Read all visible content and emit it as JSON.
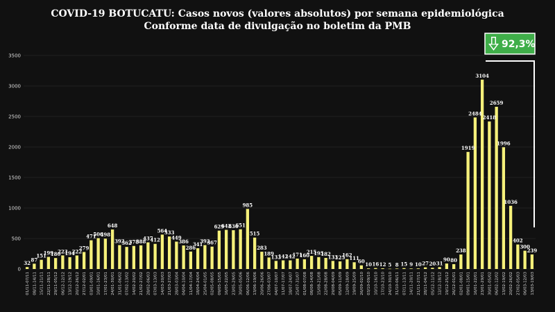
{
  "chart_data": {
    "type": "bar",
    "title": "COVID-19 BOTUCATU: Casos novos (valores absolutos) por semana epidemiológica",
    "subtitle": "Conforme data de divulgação no boletim da PMB",
    "ylim": [
      0,
      3500
    ],
    "yticks": [
      0,
      500,
      1000,
      1500,
      2000,
      2500,
      3000,
      3500
    ],
    "grid": true,
    "bar_color": "#f5f07a",
    "badge": {
      "text": "92,3%",
      "color": "#3fae49"
    },
    "categories": [
      "01/11-07/11",
      "08/11-14/11",
      "15/11-21/11",
      "22/11-28/11",
      "29/11-05/12",
      "06/12-12/12",
      "13/12-19/12",
      "20/12-26/12",
      "27/12-02/01",
      "03/01-09/01",
      "10/01-16/01",
      "17/01-23/01",
      "24/01-30/01",
      "31/01-06/02",
      "07/02-13/02",
      "14/02-20/02",
      "21/02-27/02",
      "28/02-06/03",
      "07/03-13/03",
      "14/03-20/03",
      "21/03-27/03",
      "28/03-03/04",
      "04/04-10/04",
      "11/04-17/04",
      "18/04-24/04",
      "25/04-01/05",
      "02/05-08/05",
      "09/05-15/05",
      "16/05-22/05",
      "23/05-29/05",
      "30/05-05/06",
      "06/06-12/06",
      "13/06-19/06",
      "20/06-26/06",
      "27/06-03/07",
      "04/07-10/07",
      "11/07-17/07",
      "18/07-24/07",
      "25/07-31/07",
      "01/08-07/08",
      "08/08-14/08",
      "15/08-21/08",
      "22/08-28/08",
      "29/08-04/09",
      "05/09-11/09",
      "12/09-18/09",
      "19/09-25/09",
      "26/09-02/10",
      "03/10-09/10",
      "10/10-16/10",
      "17/10-23/10",
      "24/10-30/10",
      "31/10-06/11",
      "07/11-13/11",
      "14/11-20/11",
      "21/11-27/11",
      "28/11-04/12",
      "05/12-11/12",
      "12/12-18/12",
      "19/12-25/12",
      "26/12-01/01",
      "02/01-08/01",
      "09/01-15/01",
      "16/01-22/01",
      "23/01-29/01",
      "30/01-05/02",
      "06/02-12/02",
      "13/02-19/02",
      "20/02-26/02",
      "27/02-05/03",
      "06/03-12/03",
      "13/03-19/03"
    ],
    "values": [
      32,
      87,
      151,
      199,
      180,
      223,
      194,
      222,
      279,
      471,
      506,
      498,
      648,
      392,
      362,
      378,
      388,
      437,
      412,
      564,
      533,
      449,
      386,
      286,
      341,
      392,
      367,
      629,
      642,
      636,
      651,
      985,
      515,
      283,
      189,
      133,
      142,
      142,
      171,
      160,
      215,
      195,
      182,
      133,
      125,
      162,
      111,
      60,
      10,
      16,
      12,
      5,
      8,
      15,
      9,
      10,
      27,
      20,
      31,
      90,
      80,
      238,
      1919,
      2484,
      3104,
      2418,
      2659,
      1996,
      1036,
      402,
      300,
      239
    ]
  }
}
